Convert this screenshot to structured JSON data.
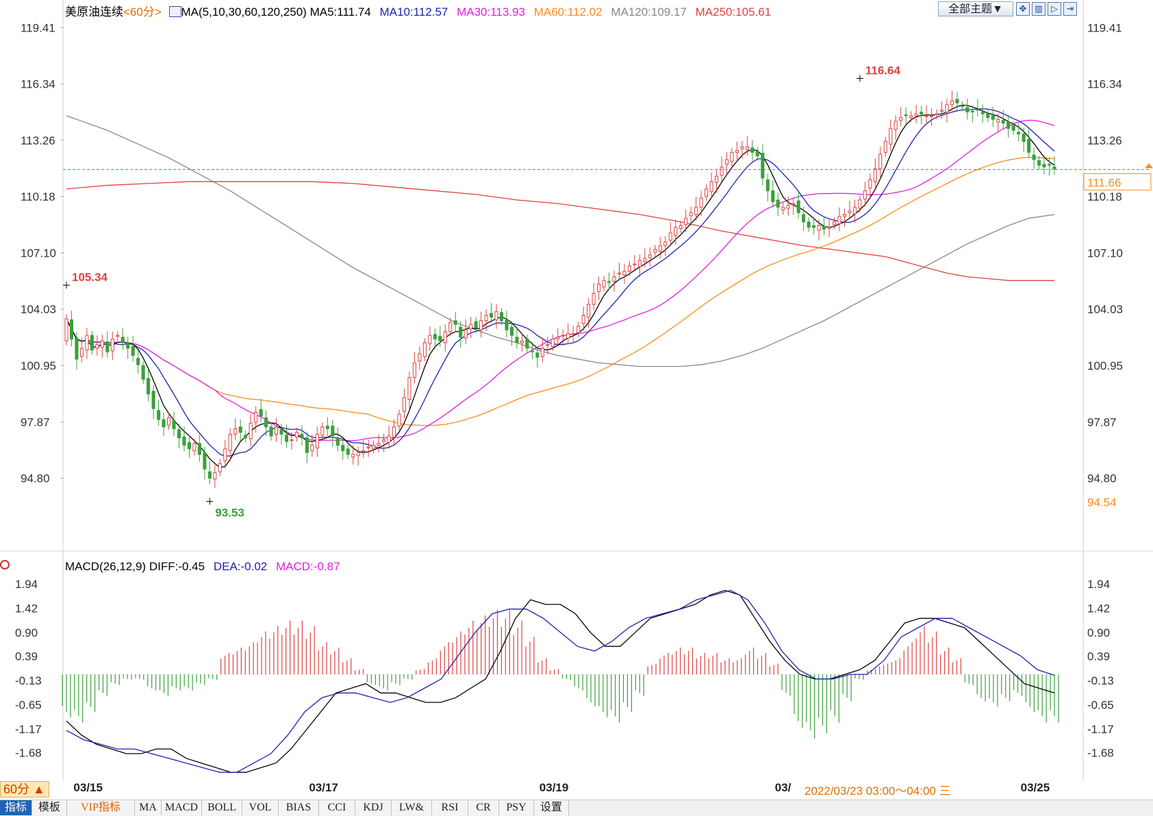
{
  "header": {
    "symbol": "美原油连续",
    "period_tag": "<60分>",
    "ma_label": "MA(5,10,30,60,120,250)",
    "ma5": "MA5:111.74",
    "ma10": "MA10:112.57",
    "ma30": "MA30:113.93",
    "ma60": "MA60:112.02",
    "ma120": "MA120:109.17",
    "ma250": "MA250:105.61",
    "theme_button": "全部主题▼"
  },
  "macd_header": {
    "label": "MACD(26,12,9)",
    "diff": "DIFF:-0.45",
    "dea": "DEA:-0.02",
    "macd": "MACD:-0.87"
  },
  "colors": {
    "ma5": "#000000",
    "ma10": "#1f1fb0",
    "ma30": "#e020e0",
    "ma60": "#ff8a1a",
    "ma120": "#888888",
    "ma250": "#e04040",
    "up": "#e04040",
    "down": "#3aa03a"
  },
  "chart_data": [
    {
      "type": "candlestick",
      "ylim": [
        92.5,
        119.8
      ],
      "y_ticks": [
        "119.41",
        "116.34",
        "113.26",
        "110.18",
        "107.10",
        "104.03",
        "100.95",
        "97.87",
        "94.80"
      ],
      "y_tick_values": [
        119.41,
        116.34,
        113.26,
        110.18,
        107.1,
        104.03,
        100.95,
        97.87,
        94.8
      ],
      "last_price": "111.66",
      "last_price_value": 111.66,
      "extra_right_label": "94.54",
      "annotations": [
        {
          "text": "116.64",
          "x_index": 155,
          "value": 116.64
        },
        {
          "text": "105.34",
          "x_index": 0,
          "value": 105.34
        },
        {
          "text": "93.53",
          "x_index": 28,
          "value": 93.53
        }
      ],
      "close_series": [
        103.5,
        102.4,
        101.3,
        101.9,
        102.6,
        101.8,
        102.1,
        102.3,
        101.7,
        102.4,
        102.6,
        102.2,
        101.9,
        101.5,
        101.0,
        100.2,
        99.4,
        98.6,
        98.0,
        97.6,
        98.1,
        97.5,
        97.0,
        96.6,
        96.4,
        96.7,
        96.1,
        95.3,
        94.8,
        95.1,
        95.6,
        96.4,
        97.2,
        97.5,
        97.3,
        97.0,
        97.8,
        98.4,
        98.2,
        97.6,
        97.1,
        97.6,
        97.2,
        96.8,
        96.9,
        97.3,
        97.0,
        96.2,
        96.6,
        97.2,
        97.6,
        97.5,
        97.1,
        96.6,
        96.3,
        96.1,
        96.1,
        96.2,
        96.3,
        96.5,
        96.6,
        96.7,
        96.9,
        97.1,
        97.6,
        98.3,
        99.2,
        100.3,
        101.1,
        101.6,
        102.2,
        102.6,
        102.4,
        102.3,
        102.8,
        103.3,
        103.2,
        102.5,
        102.9,
        103.2,
        103.0,
        103.4,
        103.7,
        103.6,
        103.9,
        103.4,
        102.9,
        102.6,
        102.2,
        102.3,
        101.9,
        101.7,
        101.4,
        101.9,
        102.1,
        102.4,
        102.5,
        102.6,
        102.7,
        102.7,
        103.1,
        103.7,
        104.3,
        104.9,
        105.4,
        105.6,
        105.5,
        105.8,
        106.0,
        106.1,
        106.4,
        106.5,
        106.7,
        106.8,
        107.0,
        107.3,
        107.5,
        107.7,
        108.2,
        108.5,
        108.6,
        109.0,
        109.3,
        109.6,
        110.1,
        110.6,
        111.0,
        111.3,
        111.8,
        112.2,
        112.6,
        112.7,
        112.9,
        112.9,
        112.6,
        112.4,
        111.2,
        110.5,
        109.9,
        109.6,
        109.6,
        109.7,
        109.8,
        109.3,
        108.8,
        108.5,
        108.5,
        108.6,
        108.4,
        108.5,
        108.8,
        109.1,
        109.2,
        109.4,
        109.6,
        110.0,
        110.5,
        111.1,
        111.7,
        112.5,
        113.2,
        113.9,
        114.3,
        114.5,
        114.6,
        114.6,
        114.7,
        114.7,
        114.6,
        114.6,
        114.7,
        114.9,
        115.2,
        115.4,
        115.3,
        115.1,
        114.8,
        114.8,
        114.9,
        114.7,
        114.5,
        114.4,
        114.4,
        114.2,
        113.9,
        113.8,
        113.6,
        113.2,
        112.6,
        112.2,
        111.9,
        111.8,
        111.9,
        111.7
      ],
      "ma120": [
        114.6,
        114.2,
        113.8,
        113.3,
        112.8,
        112.3,
        111.7,
        111.1,
        110.5,
        109.8,
        109.1,
        108.4,
        107.7,
        107.0,
        106.3,
        105.7,
        105.1,
        104.5,
        103.9,
        103.3,
        102.9,
        102.5,
        102.2,
        101.8,
        101.5,
        101.3,
        101.1,
        101.0,
        100.9,
        100.9,
        100.9,
        101.0,
        101.2,
        101.5,
        101.9,
        102.4,
        102.9,
        103.4,
        104.0,
        104.6,
        105.2,
        105.8,
        106.4,
        107.0,
        107.6,
        108.1,
        108.6,
        109.0,
        109.2
      ],
      "ma120_x": [
        0,
        4,
        8,
        12,
        16,
        20,
        24,
        28,
        32,
        36,
        40,
        44,
        48,
        52,
        56,
        60,
        64,
        68,
        72,
        76,
        80,
        84,
        88,
        92,
        96,
        100,
        104,
        108,
        112,
        116,
        120,
        124,
        128,
        132,
        136,
        140,
        144,
        148,
        152,
        156,
        160,
        164,
        168,
        172,
        176,
        180,
        184,
        188,
        193
      ],
      "ma250": [
        110.6,
        110.8,
        110.9,
        111.0,
        111.0,
        111.0,
        111.0,
        110.9,
        110.7,
        110.5,
        110.3,
        110.0,
        109.8,
        109.5,
        109.2,
        108.8,
        108.3,
        107.9,
        107.5,
        107.2,
        106.9,
        106.6,
        106.3,
        106.0,
        105.8,
        105.7,
        105.6,
        105.6,
        105.6
      ],
      "ma250_x": [
        0,
        8,
        16,
        24,
        32,
        40,
        48,
        56,
        64,
        72,
        80,
        88,
        96,
        104,
        112,
        120,
        128,
        136,
        144,
        152,
        160,
        164,
        168,
        172,
        176,
        180,
        184,
        188,
        193
      ]
    },
    {
      "type": "macd",
      "ylim": [
        -2.2,
        2.1
      ],
      "y_ticks": [
        "1.94",
        "1.42",
        "0.90",
        "0.39",
        "-0.13",
        "-0.65",
        "-1.17",
        "-1.68"
      ],
      "y_tick_values": [
        1.94,
        1.42,
        0.9,
        0.39,
        -0.13,
        -0.65,
        -1.17,
        -1.68
      ],
      "x_labels": [
        "03/15",
        "03/17",
        "03/19",
        "03/",
        "03/25"
      ],
      "x_label_index": [
        3,
        49,
        94,
        140,
        188
      ],
      "hover_label": "2022/03/23 03:00～04:00 三",
      "diff": [
        -1.0,
        -1.3,
        -1.5,
        -1.6,
        -1.7,
        -1.7,
        -1.6,
        -1.6,
        -1.8,
        -1.9,
        -2.0,
        -2.1,
        -2.1,
        -2.0,
        -1.9,
        -1.6,
        -1.2,
        -0.8,
        -0.4,
        -0.3,
        -0.2,
        -0.4,
        -0.4,
        -0.5,
        -0.6,
        -0.6,
        -0.5,
        -0.3,
        -0.1,
        0.5,
        1.2,
        1.6,
        1.5,
        1.5,
        1.3,
        0.9,
        0.6,
        0.6,
        0.9,
        1.2,
        1.3,
        1.4,
        1.5,
        1.7,
        1.8,
        1.7,
        1.2,
        0.7,
        0.3,
        0.0,
        -0.1,
        -0.1,
        0.0,
        0.1,
        0.3,
        0.7,
        1.1,
        1.2,
        1.2,
        1.1,
        1.0,
        0.7,
        0.4,
        0.1,
        -0.2,
        -0.3,
        -0.4
      ],
      "dea": [
        -1.2,
        -1.4,
        -1.5,
        -1.6,
        -1.6,
        -1.7,
        -1.8,
        -1.9,
        -2.0,
        -2.1,
        -2.1,
        -1.9,
        -1.7,
        -1.3,
        -0.8,
        -0.5,
        -0.4,
        -0.4,
        -0.5,
        -0.6,
        -0.5,
        -0.3,
        -0.1,
        0.4,
        0.9,
        1.3,
        1.4,
        1.4,
        1.2,
        0.9,
        0.6,
        0.5,
        0.7,
        1.0,
        1.2,
        1.3,
        1.4,
        1.6,
        1.7,
        1.8,
        1.6,
        1.1,
        0.5,
        0.1,
        -0.1,
        -0.1,
        0.0,
        0.0,
        0.3,
        0.8,
        1.0,
        1.2,
        1.2,
        1.0,
        0.8,
        0.6,
        0.4,
        0.1,
        -0.02
      ],
      "histogram": [
        -0.8,
        -0.9,
        -0.7,
        -0.4,
        -0.2,
        -0.1,
        -0.1,
        -0.3,
        -0.4,
        -0.3,
        -0.3,
        -0.2,
        -0.1,
        0.4,
        0.5,
        0.6,
        0.8,
        0.9,
        1.0,
        1.0,
        0.9,
        0.6,
        0.5,
        0.3,
        0.1,
        -0.2,
        -0.3,
        -0.2,
        -0.1,
        0.1,
        0.3,
        0.6,
        0.8,
        1.0,
        1.1,
        1.2,
        1.2,
        1.0,
        0.7,
        0.3,
        0.1,
        -0.1,
        -0.3,
        -0.6,
        -0.8,
        -0.9,
        -0.7,
        -0.4,
        0.2,
        0.4,
        0.5,
        0.5,
        0.4,
        0.4,
        0.3,
        0.3,
        0.5,
        0.4,
        0.2,
        -0.4,
        -1.0,
        -1.2,
        -1.1,
        -0.9,
        -0.5,
        -0.1,
        0.1,
        0.2,
        0.3,
        0.6,
        0.9,
        0.8,
        0.5,
        0.3,
        -0.2,
        -0.5,
        -0.6,
        -0.5,
        -0.4,
        -0.7,
        -0.9,
        -0.9
      ]
    }
  ],
  "footer": {
    "period_button": "60分 ▲",
    "tabs": [
      "指标",
      "模板",
      "VIP指标",
      "MA",
      "MACD",
      "BOLL",
      "VOL",
      "BIAS",
      "CCI",
      "KDJ",
      "LW&",
      "RSI",
      "CR",
      "PSY",
      "设置"
    ]
  }
}
